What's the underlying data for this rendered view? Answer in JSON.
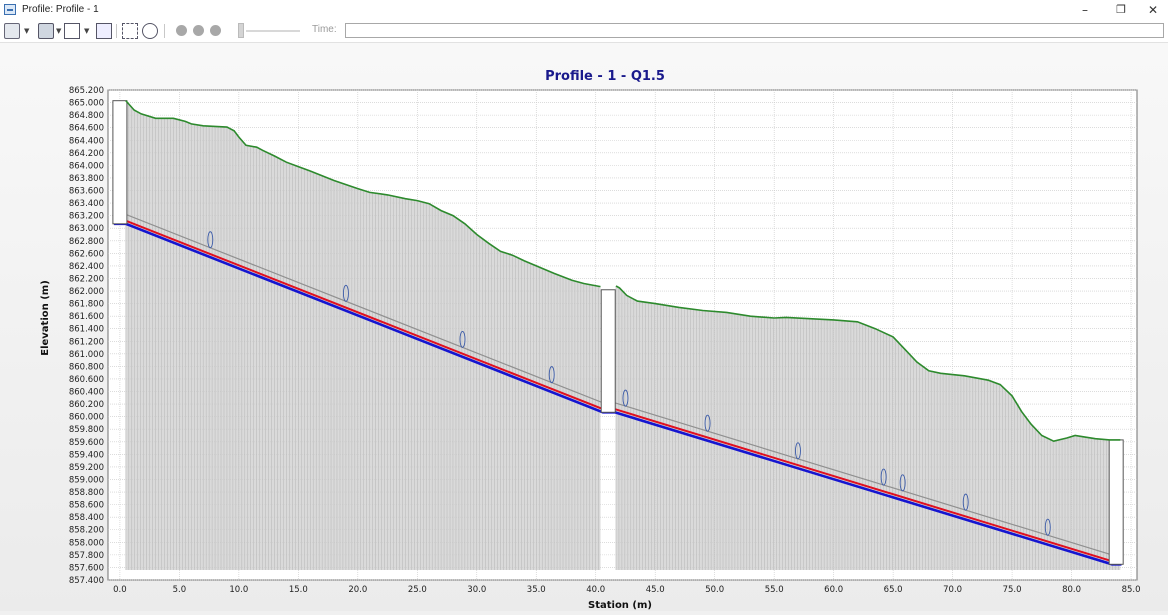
{
  "window": {
    "title": "Profile: Profile - 1",
    "minimize_glyph": "–",
    "restore_glyph": "❐",
    "close_glyph": "✕"
  },
  "toolbar": {
    "time_label": "Time:",
    "time_value": "",
    "icons": [
      "chart-options-icon",
      "print-icon",
      "print-preview-icon",
      "copy-icon",
      "zoom-extents-icon",
      "zoom-icon",
      "rewind-icon",
      "pause-icon",
      "play-icon"
    ]
  },
  "colors": {
    "title": "#1a1a8c",
    "ground": "#2d8a2d",
    "invert": "#1515d0",
    "hgl": "#e01020",
    "crown": "#909090",
    "fill": "#cdcdcd"
  },
  "chart_data": {
    "type": "line",
    "title": "Profile - 1 - Q1.5",
    "xlabel": "Station (m)",
    "ylabel": "Elevation (m)",
    "xlim": [
      -1,
      85.5
    ],
    "ylim": [
      857.4,
      865.2
    ],
    "x_ticks": [
      "0.0",
      "5.0",
      "10.0",
      "15.0",
      "20.0",
      "25.0",
      "30.0",
      "35.0",
      "40.0",
      "45.0",
      "50.0",
      "55.0",
      "60.0",
      "65.0",
      "70.0",
      "75.0",
      "80.0",
      "85.0"
    ],
    "y_ticks": [
      "857.400",
      "857.600",
      "857.800",
      "858.000",
      "858.200",
      "858.400",
      "858.600",
      "858.800",
      "859.000",
      "859.200",
      "859.400",
      "859.600",
      "859.800",
      "860.000",
      "860.200",
      "860.400",
      "860.600",
      "860.800",
      "861.000",
      "861.200",
      "861.400",
      "861.600",
      "861.800",
      "862.000",
      "862.200",
      "862.400",
      "862.600",
      "862.800",
      "863.000",
      "863.200",
      "863.400",
      "863.600",
      "863.800",
      "864.000",
      "864.200",
      "864.400",
      "864.600",
      "864.800",
      "865.000",
      "865.200"
    ],
    "grid": true,
    "series": [
      {
        "x": [
          0.5,
          1.2,
          1.8,
          3,
          4.5,
          5.5,
          6,
          7,
          8,
          9,
          9.6,
          10,
          10.6,
          11.5,
          12,
          13,
          14,
          15,
          16,
          18,
          20,
          21,
          22.5,
          24,
          25,
          26,
          27,
          28,
          29,
          30,
          31,
          32,
          33,
          34,
          35,
          36.5,
          38,
          39,
          40.4
        ],
        "y": [
          865.03,
          864.88,
          864.82,
          864.75,
          864.75,
          864.7,
          864.66,
          864.63,
          864.62,
          864.61,
          864.55,
          864.45,
          864.32,
          864.29,
          864.24,
          864.15,
          864.05,
          863.98,
          863.91,
          863.76,
          863.63,
          863.57,
          863.53,
          863.47,
          863.44,
          863.39,
          863.28,
          863.2,
          863.07,
          862.9,
          862.76,
          862.63,
          862.57,
          862.48,
          862.4,
          862.28,
          862.17,
          862.12,
          862.07
        ]
      },
      {
        "x": [
          41.7,
          42,
          42.6,
          43.5,
          45,
          47,
          49,
          51,
          53,
          55,
          56,
          58,
          60,
          62,
          63.5,
          65,
          66,
          67,
          68,
          69,
          71,
          73,
          74,
          75,
          75.8,
          76.6,
          77.5,
          78.5,
          79.6,
          80.3,
          81,
          82,
          83.2,
          84.1
        ],
        "y": [
          862.08,
          862.05,
          861.93,
          861.84,
          861.8,
          861.74,
          861.69,
          861.66,
          861.6,
          861.57,
          861.58,
          861.56,
          861.54,
          861.51,
          861.4,
          861.27,
          861.07,
          860.87,
          860.73,
          860.69,
          860.65,
          860.58,
          860.51,
          860.33,
          860.08,
          859.88,
          859.7,
          859.61,
          859.66,
          859.7,
          859.68,
          859.65,
          859.63,
          859.63
        ]
      },
      {
        "x": [
          -0.5,
          0.5,
          40.6,
          41.6,
          83.4,
          84.2
        ],
        "y": [
          863.07,
          863.07,
          860.07,
          860.07,
          857.65,
          857.65
        ]
      },
      {
        "x": [
          0.5,
          40.6,
          41.6,
          83.4
        ],
        "y": [
          863.12,
          860.12,
          860.12,
          857.7
        ]
      },
      {
        "x": [
          0.5,
          40.6,
          41.6,
          83.4
        ],
        "y": [
          863.22,
          860.22,
          860.22,
          857.8
        ]
      }
    ],
    "manholes": [
      {
        "x": 0.0,
        "bottom": 863.07,
        "top": 865.03
      },
      {
        "x": 41.05,
        "bottom": 860.07,
        "top": 862.02
      },
      {
        "x": 83.75,
        "bottom": 857.65,
        "top": 859.63
      }
    ],
    "flow_markers_x": [
      7.6,
      19.0,
      28.8,
      36.3,
      42.5,
      49.4,
      57.0,
      64.2,
      65.8,
      71.1,
      78.0
    ]
  }
}
